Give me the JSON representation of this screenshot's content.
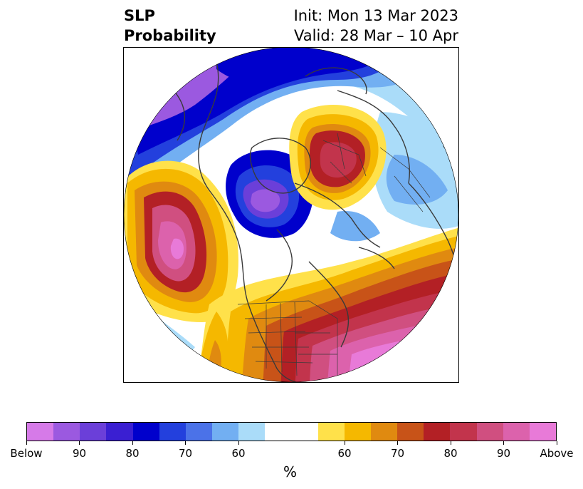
{
  "title": {
    "left_line1": "SLP",
    "left_line2": "Probability",
    "right_line1": "Init: Mon 13 Mar 2023",
    "right_line2": "Valid: 28 Mar – 10 Apr"
  },
  "colorbar": {
    "label": "%",
    "below_colors": [
      "#d67ae8",
      "#9b59e0",
      "#6b3fd9",
      "#3a1fd2",
      "#0000cc",
      "#2340dd",
      "#4b72e8",
      "#72aff2",
      "#aadcf9"
    ],
    "neutral_color": "#ffffff",
    "above_colors": [
      "#ffe14a",
      "#f5b800",
      "#e08a10",
      "#c85318",
      "#b32025",
      "#c2344c",
      "#d04f80",
      "#dc62ac",
      "#e87ad8"
    ],
    "ticks": [
      "Below",
      "90",
      "80",
      "70",
      "60",
      "60",
      "70",
      "80",
      "90",
      "Above"
    ]
  },
  "map": {
    "projection": "north-polar-stereographic",
    "colors": {
      "below_strong": "#9b59e0",
      "below_core": "#0000cc",
      "below_mid": "#2340dd",
      "below_light": "#72aff2",
      "below_faint": "#aadcf9",
      "above_faint": "#ffe14a",
      "above_light": "#f5b800",
      "above_mid": "#e08a10",
      "above_red": "#b32025",
      "above_pink": "#d04f80",
      "above_core": "#e87ad8",
      "coastline": "#3a3a3a"
    }
  }
}
